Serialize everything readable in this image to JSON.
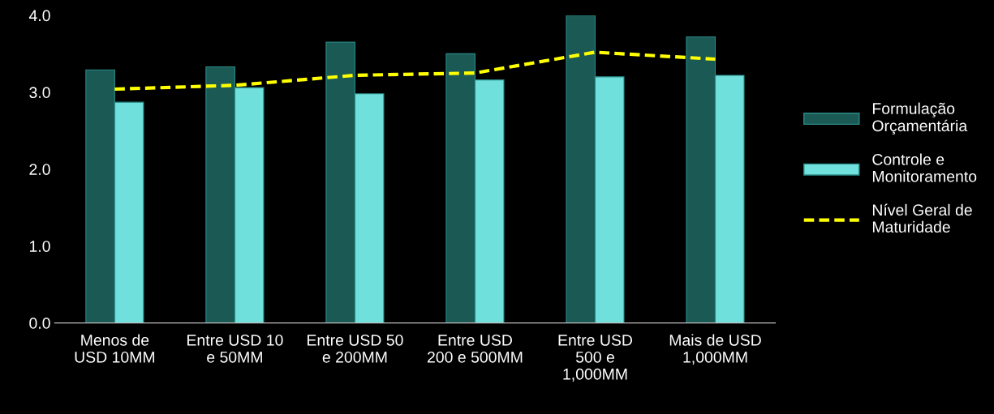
{
  "chart_data": {
    "type": "bar",
    "categories": [
      "Menos de\nUSD 10MM",
      "Entre USD 10\ne 50MM",
      "Entre USD 50\ne 200MM",
      "Entre USD\n200 e 500MM",
      "Entre USD\n500 e\n1,000MM",
      "Mais de USD\n1,000MM"
    ],
    "series": [
      {
        "name": "Formulação\nOrçamentária",
        "color": "#1b5955",
        "values": [
          3.29,
          3.33,
          3.65,
          3.5,
          4.0,
          3.72
        ]
      },
      {
        "name": "Controle e\nMonitoramento",
        "color": "#6fe0dc",
        "values": [
          2.87,
          3.06,
          2.98,
          3.16,
          3.2,
          3.22
        ]
      },
      {
        "name": "Nível Geral de\nMaturidade",
        "type": "line",
        "color": "#ffff00",
        "line_style": "dashed",
        "marker": "none",
        "values": [
          3.04,
          3.09,
          3.22,
          3.25,
          3.52,
          3.43
        ]
      }
    ],
    "ylim": [
      0,
      4.0
    ],
    "yticks": [
      {
        "value": 0,
        "label": "0.0"
      },
      {
        "value": 1,
        "label": "1.0"
      },
      {
        "value": 2,
        "label": "2.0"
      },
      {
        "value": 3,
        "label": "3.0"
      },
      {
        "value": 4,
        "label": "4.0"
      }
    ],
    "grid": false,
    "legend": "right"
  }
}
